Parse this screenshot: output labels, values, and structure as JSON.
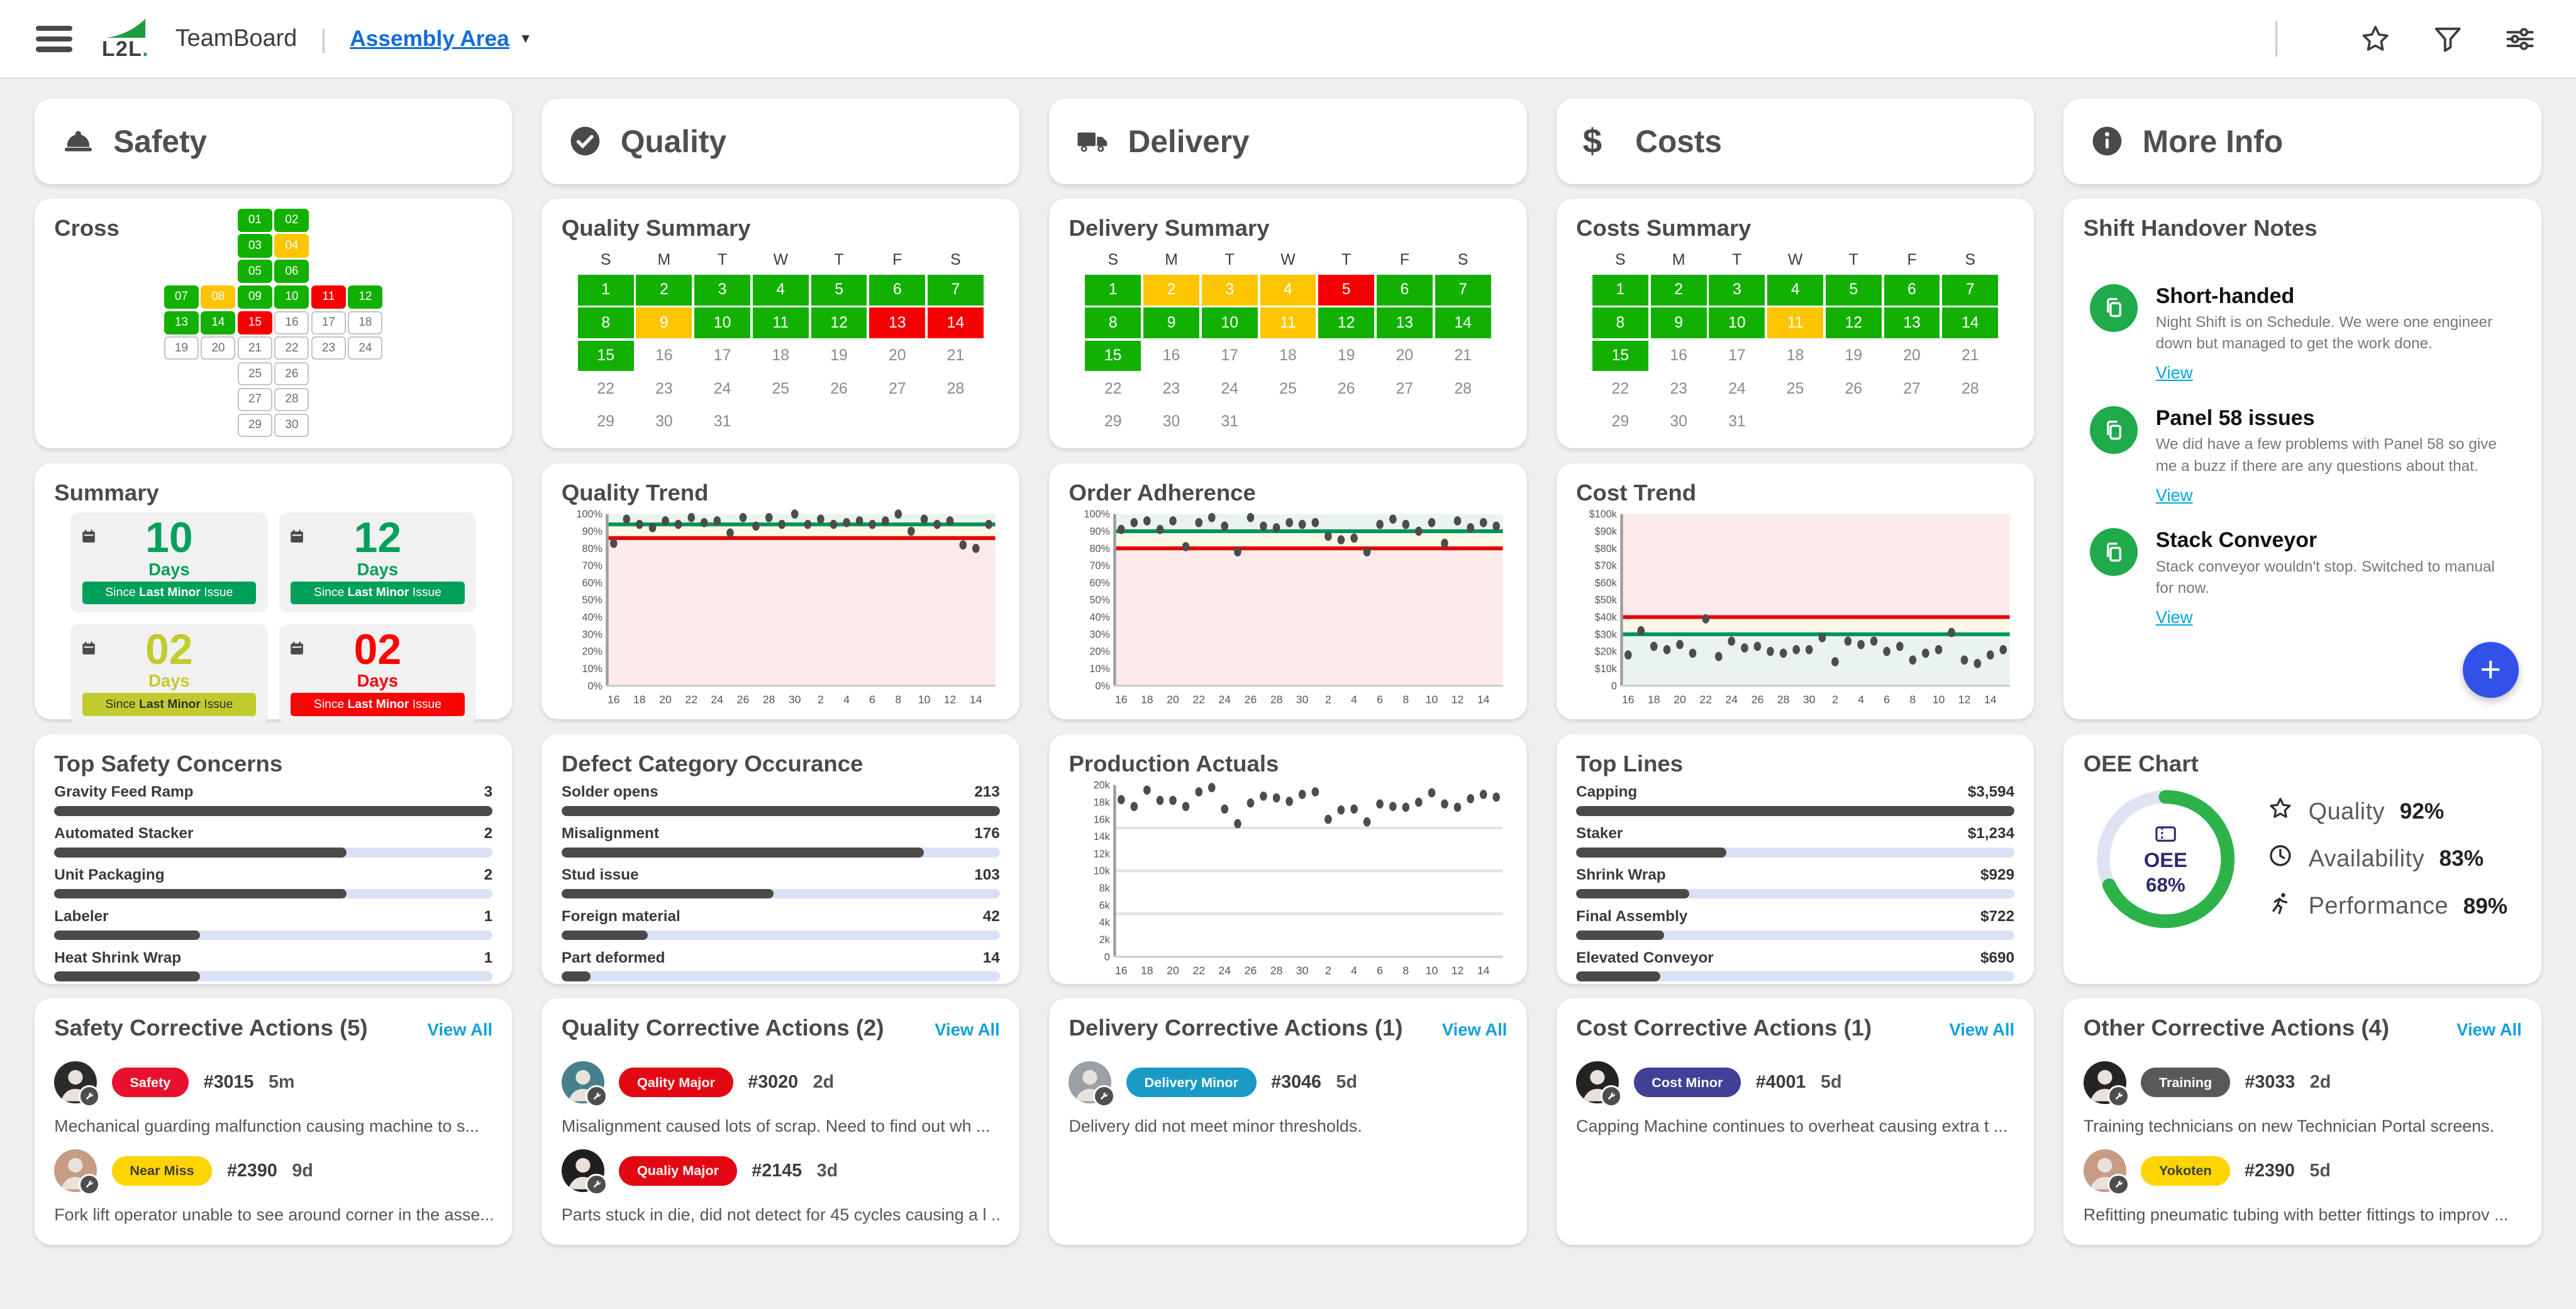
{
  "header": {
    "brand": "L2L",
    "app_name": "TeamBoard",
    "area_selector": "Assembly Area",
    "icons": [
      "menu-icon",
      "star-icon",
      "filter-icon",
      "sliders-icon"
    ]
  },
  "weekdays": [
    "S",
    "M",
    "T",
    "W",
    "T",
    "F",
    "S"
  ],
  "day_axis": [
    "16",
    "18",
    "20",
    "22",
    "24",
    "26",
    "28",
    "30",
    "2",
    "4",
    "6",
    "8",
    "10",
    "12",
    "14"
  ],
  "status_colors": {
    "green": "#12b000",
    "yellow": "#fdc500",
    "red": "#f40000"
  },
  "columns": {
    "safety": {
      "title": "Safety",
      "icon": "hardhat",
      "cross": {
        "title": "Cross",
        "days": [
          {
            "d": "01",
            "s": "green"
          },
          {
            "d": "02",
            "s": "green"
          },
          {
            "d": "03",
            "s": "green"
          },
          {
            "d": "04",
            "s": "yellow"
          },
          {
            "d": "05",
            "s": "green"
          },
          {
            "d": "06",
            "s": "green"
          },
          {
            "d": "07",
            "s": "green"
          },
          {
            "d": "08",
            "s": "yellow"
          },
          {
            "d": "09",
            "s": "green"
          },
          {
            "d": "10",
            "s": "green"
          },
          {
            "d": "11",
            "s": "red"
          },
          {
            "d": "12",
            "s": "green"
          },
          {
            "d": "13",
            "s": "green"
          },
          {
            "d": "14",
            "s": "green"
          },
          {
            "d": "15",
            "s": "red"
          },
          {
            "d": "16",
            "s": "none"
          },
          {
            "d": "17",
            "s": "none"
          },
          {
            "d": "18",
            "s": "none"
          },
          {
            "d": "19",
            "s": "none"
          },
          {
            "d": "20",
            "s": "none"
          },
          {
            "d": "21",
            "s": "none"
          },
          {
            "d": "22",
            "s": "none"
          },
          {
            "d": "23",
            "s": "none"
          },
          {
            "d": "24",
            "s": "none"
          },
          {
            "d": "25",
            "s": "none"
          },
          {
            "d": "26",
            "s": "none"
          },
          {
            "d": "27",
            "s": "none"
          },
          {
            "d": "28",
            "s": "none"
          },
          {
            "d": "29",
            "s": "none"
          },
          {
            "d": "30",
            "s": "none"
          }
        ]
      },
      "summary": {
        "title": "Summary",
        "tiles": [
          {
            "value": "10",
            "unit": "Days",
            "caption_pre": "Since ",
            "caption_bold": "Last Minor",
            "caption_post": " Issue",
            "accent": "#00a05a",
            "band_fg": "#ffffff"
          },
          {
            "value": "12",
            "unit": "Days",
            "caption_pre": "Since ",
            "caption_bold": "Last Minor",
            "caption_post": " Issue",
            "accent": "#00a05a",
            "band_fg": "#ffffff"
          },
          {
            "value": "02",
            "unit": "Days",
            "caption_pre": "Since ",
            "caption_bold": "Last Minor",
            "caption_post": " Issue",
            "accent": "#c2cb2d",
            "band_fg": "#2f2f2f"
          },
          {
            "value": "02",
            "unit": "Days",
            "caption_pre": "Since ",
            "caption_bold": "Last Minor",
            "caption_post": " Issue",
            "accent": "#f80504",
            "band_fg": "#ffffff"
          }
        ]
      },
      "concerns": {
        "title": "Top Safety Concerns",
        "rows": [
          {
            "label": "Gravity Feed Ramp",
            "display": "3",
            "value": 3
          },
          {
            "label": "Automated Stacker",
            "display": "2",
            "value": 2
          },
          {
            "label": "Unit Packaging",
            "display": "2",
            "value": 2
          },
          {
            "label": "Labeler",
            "display": "1",
            "value": 1
          },
          {
            "label": "Heat Shrink Wrap",
            "display": "1",
            "value": 1
          }
        ]
      },
      "actions": {
        "title": "Safety Corrective Actions (5)",
        "view_all": "View All",
        "items": [
          {
            "badge": "Safety",
            "badge_bg": "#e8112d",
            "badge_fg": "#ffffff",
            "id": "#3015",
            "age": "5m",
            "text": "Mechanical guarding malfunction causing machine to s...",
            "avatar_bg": "#2b2b2b"
          },
          {
            "badge": "Near Miss",
            "badge_bg": "#fed500",
            "badge_fg": "#3d3d3d",
            "id": "#2390",
            "age": "9d",
            "text": "Fork lift operator unable to see around corner in the asse...",
            "avatar_bg": "#c79b84"
          }
        ]
      }
    },
    "quality": {
      "title": "Quality",
      "icon": "check",
      "calendar": {
        "title": "Quality Summary",
        "statuses": [
          "green",
          "green",
          "green",
          "green",
          "green",
          "green",
          "green",
          "green",
          "yellow",
          "green",
          "green",
          "green",
          "red",
          "red",
          "green",
          "none",
          "none",
          "none",
          "none",
          "none",
          "none",
          "none",
          "none",
          "none",
          "none",
          "none",
          "none",
          "none",
          "none",
          "none",
          "none"
        ]
      },
      "trend": {
        "title": "Quality Trend",
        "type": "scatter",
        "yfmt": "pct",
        "ymax": 100,
        "ystep": 10,
        "green_line": 94,
        "red_line": 86,
        "zones": "normal",
        "values": [
          83,
          97,
          94,
          92,
          96,
          94,
          98,
          95,
          96,
          89,
          98,
          93,
          98,
          94,
          100,
          94,
          97,
          94,
          95,
          96,
          94,
          96,
          100,
          90,
          97,
          94,
          96,
          82,
          80,
          94
        ]
      },
      "defects": {
        "title": "Defect Category Occurance",
        "rows": [
          {
            "label": "Solder opens",
            "display": "213",
            "value": 213
          },
          {
            "label": "Misalignment",
            "display": "176",
            "value": 176
          },
          {
            "label": "Stud issue",
            "display": "103",
            "value": 103
          },
          {
            "label": "Foreign material",
            "display": "42",
            "value": 42
          },
          {
            "label": "Part deformed",
            "display": "14",
            "value": 14
          }
        ]
      },
      "actions": {
        "title": "Quality Corrective Actions (2)",
        "view_all": "View All",
        "items": [
          {
            "badge": "Qality Major",
            "badge_bg": "#e30613",
            "badge_fg": "#ffffff",
            "id": "#3020",
            "age": "2d",
            "text": "Misalignment caused lots of scrap. Need to find out wh ...",
            "avatar_bg": "#47808a"
          },
          {
            "badge": "Qualiy Major",
            "badge_bg": "#e30613",
            "badge_fg": "#ffffff",
            "id": "#2145",
            "age": "3d",
            "text": "Parts stuck in die, did not detect for 45 cycles causing a l ...",
            "avatar_bg": "#1f1f1f"
          }
        ]
      }
    },
    "delivery": {
      "title": "Delivery",
      "icon": "truck",
      "calendar": {
        "title": "Delivery Summary",
        "statuses": [
          "green",
          "yellow",
          "yellow",
          "yellow",
          "red",
          "green",
          "green",
          "green",
          "green",
          "green",
          "yellow",
          "green",
          "green",
          "green",
          "green",
          "none",
          "none",
          "none",
          "none",
          "none",
          "none",
          "none",
          "none",
          "none",
          "none",
          "none",
          "none",
          "none",
          "none",
          "none",
          "none"
        ]
      },
      "adherence": {
        "title": "Order Adherence",
        "type": "scatter",
        "yfmt": "pct",
        "ymax": 100,
        "ystep": 10,
        "green_line": 90,
        "red_line": 80,
        "zones": "normal",
        "values": [
          91,
          95,
          96,
          91,
          96,
          81,
          95,
          98,
          93,
          78,
          98,
          93,
          92,
          95,
          94,
          95,
          87,
          85,
          86,
          78,
          94,
          97,
          94,
          90,
          95,
          83,
          96,
          92,
          95,
          93
        ]
      },
      "production": {
        "title": "Production Actuals",
        "type": "scatter",
        "yfmt": "k",
        "ymax": 20000,
        "ystep": 2000,
        "gridlines": [
          15000,
          10000,
          5000
        ],
        "values": [
          18300,
          17500,
          19400,
          18200,
          18200,
          17500,
          19200,
          19700,
          17200,
          15500,
          17900,
          18700,
          18500,
          18100,
          18900,
          19200,
          16000,
          17100,
          17200,
          15700,
          17800,
          17500,
          17400,
          18000,
          19100,
          17800,
          17400,
          18400,
          18900,
          18600
        ]
      },
      "actions": {
        "title": "Delivery Corrective Actions (1)",
        "view_all": "View All",
        "items": [
          {
            "badge": "Delivery Minor",
            "badge_bg": "#199bc6",
            "badge_fg": "#ffffff",
            "id": "#3046",
            "age": "5d",
            "text": "Delivery did not meet minor thresholds.",
            "avatar_bg": "#9aa0a6"
          }
        ]
      }
    },
    "costs": {
      "title": "Costs",
      "icon": "dollar",
      "calendar": {
        "title": "Costs Summary",
        "statuses": [
          "green",
          "green",
          "green",
          "green",
          "green",
          "green",
          "green",
          "green",
          "green",
          "green",
          "yellow",
          "green",
          "green",
          "green",
          "green",
          "none",
          "none",
          "none",
          "none",
          "none",
          "none",
          "none",
          "none",
          "none",
          "none",
          "none",
          "none",
          "none",
          "none",
          "none",
          "none"
        ]
      },
      "trend": {
        "title": "Cost Trend",
        "type": "scatter",
        "yfmt": "usdk",
        "ymax": 100000,
        "ystep": 10000,
        "green_line": 30000,
        "red_line": 40000,
        "zones": "inverted",
        "values": [
          18000,
          32000,
          23000,
          21000,
          24000,
          19000,
          39000,
          17000,
          26000,
          22000,
          23000,
          20000,
          19000,
          21000,
          21000,
          28000,
          14000,
          26000,
          24000,
          26000,
          20000,
          23000,
          15000,
          19000,
          21000,
          31000,
          15000,
          13000,
          18000,
          21000
        ]
      },
      "toplines": {
        "title": "Top Lines",
        "rows": [
          {
            "label": "Capping",
            "display": "$3,594",
            "value": 3594
          },
          {
            "label": "Staker",
            "display": "$1,234",
            "value": 1234
          },
          {
            "label": "Shrink Wrap",
            "display": "$929",
            "value": 929
          },
          {
            "label": "Final Assembly",
            "display": "$722",
            "value": 722
          },
          {
            "label": "Elevated Conveyor",
            "display": "$690",
            "value": 690
          }
        ]
      },
      "actions": {
        "title": "Cost Corrective Actions (1)",
        "view_all": "View All",
        "items": [
          {
            "badge": "Cost Minor",
            "badge_bg": "#423f96",
            "badge_fg": "#ffffff",
            "id": "#4001",
            "age": "5d",
            "text": "Capping Machine continues to overheat causing extra t ...",
            "avatar_bg": "#232323"
          }
        ]
      }
    },
    "more": {
      "title": "More Info",
      "icon": "info",
      "notes": {
        "title": "Shift Handover Notes",
        "items": [
          {
            "title": "Short-handed",
            "desc": "Night Shift is on Schedule. We were one engineer down but managed to get the work done.",
            "link": "View"
          },
          {
            "title": "Panel 58 issues",
            "desc": "We did have a few problems with Panel 58 so give me a buzz if there are any questions about that.",
            "link": "View"
          },
          {
            "title": "Stack Conveyor",
            "desc": "Stack conveyor wouldn't stop. Switched to manual for now.",
            "link": "View"
          }
        ]
      },
      "oee": {
        "title": "OEE Chart",
        "center_label": "OEE",
        "center_value": "68%",
        "percent": 68,
        "ring_color": "#2db24a",
        "track_color": "#dfe3f3",
        "metrics": [
          {
            "icon": "star",
            "label": "Quality",
            "value": "92%"
          },
          {
            "icon": "clock",
            "label": "Availability",
            "value": "83%"
          },
          {
            "icon": "runner",
            "label": "Performance",
            "value": "89%"
          }
        ]
      },
      "actions": {
        "title": "Other Corrective Actions (4)",
        "view_all": "View All",
        "items": [
          {
            "badge": "Training",
            "badge_bg": "#58595b",
            "badge_fg": "#ffffff",
            "id": "#3033",
            "age": "2d",
            "text": "Training technicians on new Technician Portal screens.",
            "avatar_bg": "#242424"
          },
          {
            "badge": "Yokoten",
            "badge_bg": "#fed500",
            "badge_fg": "#3d3d3d",
            "id": "#2390",
            "age": "5d",
            "text": "Refitting pneumatic tubing with better fittings to improv ...",
            "avatar_bg": "#c79b84"
          }
        ]
      }
    }
  }
}
